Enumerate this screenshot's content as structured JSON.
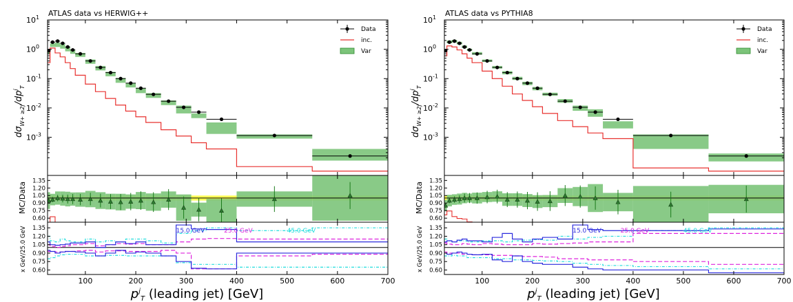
{
  "figure": {
    "x_axis_label": "p_T^j (leading jet) [GeV]",
    "x_ticks": [
      "100",
      "200",
      "300",
      "400",
      "500",
      "600",
      "700"
    ],
    "ratio_ylabel": "MC/Data",
    "var_ylabel": "x GeV/25.0 GeV",
    "ratio_ticks": [
      "1.35",
      "1.20",
      "1.05",
      "0.90",
      "0.75",
      "0.60"
    ],
    "var_ticks": [
      "1.35",
      "1.20",
      "1.05",
      "0.90",
      "0.75",
      "0.60"
    ],
    "main_ticks": [
      "10^1",
      "10^0",
      "10^-1",
      "10^-2",
      "10^-3"
    ],
    "colors": {
      "data": "#000000",
      "inc": "#e8312f",
      "var_band": "#7cc47a",
      "data_band": "#ffff55",
      "var_15": "#2b2bdd",
      "var_25": "#dd22dd",
      "var_45": "#22dddd"
    }
  },
  "chart_data": [
    {
      "type": "line",
      "title": "ATLAS data vs HERWIG++",
      "ylabel": "dσ_{W+≥2j}/dp_T^j",
      "xlabel": "p_T^j (leading jet) [GeV]",
      "xlim": [
        25,
        700
      ],
      "ylim": [
        5e-05,
        10
      ],
      "yscale": "log",
      "legend": [
        "Data",
        "inc.",
        "Var"
      ],
      "legend_position": "top-right",
      "bin_edges": [
        25,
        30,
        40,
        50,
        60,
        70,
        80,
        100,
        120,
        140,
        160,
        180,
        200,
        220,
        250,
        280,
        310,
        340,
        400,
        550,
        700
      ],
      "data": [
        0.9,
        1.75,
        1.9,
        1.6,
        1.2,
        0.95,
        0.7,
        0.4,
        0.24,
        0.16,
        0.1,
        0.07,
        0.047,
        0.029,
        0.017,
        0.0105,
        0.0072,
        0.0041,
        0.00115,
        0.00023
      ],
      "inc": [
        0.35,
        1.1,
        0.75,
        0.55,
        0.35,
        0.22,
        0.13,
        0.065,
        0.036,
        0.021,
        0.0125,
        0.0078,
        0.005,
        0.0032,
        0.0018,
        0.0011,
        0.00065,
        0.0004,
        0.0001,
        7e-05
      ],
      "var_low": [
        0.7,
        1.2,
        1.2,
        1.05,
        0.85,
        0.7,
        0.55,
        0.32,
        0.19,
        0.12,
        0.072,
        0.05,
        0.032,
        0.022,
        0.0125,
        0.0065,
        0.0045,
        0.0013,
        0.0009,
        0.00016
      ],
      "var_high": [
        1.0,
        1.6,
        1.7,
        1.5,
        1.2,
        0.95,
        0.75,
        0.45,
        0.27,
        0.17,
        0.105,
        0.07,
        0.048,
        0.032,
        0.018,
        0.012,
        0.0065,
        0.0032,
        0.00125,
        0.0004
      ],
      "ratio_mid": [
        0.95,
        0.97,
        1.0,
        0.99,
        0.98,
        0.98,
        0.97,
        0.98,
        0.95,
        0.93,
        0.92,
        0.93,
        0.95,
        0.92,
        0.97,
        0.81,
        0.77,
        0.75,
        0.98,
        1.05
      ],
      "var_lines": {
        "15": {
          "label": "15.0 GeV",
          "up": [
            1.1,
            1.05,
            1.04,
            1.05,
            1.06,
            1.08,
            1.08,
            1.1,
            1.0,
            1.05,
            1.1,
            1.07,
            1.1,
            1.05,
            1.05,
            1.4,
            1.33,
            1.32,
            1.1,
            1.1
          ],
          "down": [
            0.95,
            0.93,
            0.9,
            0.92,
            0.93,
            0.93,
            0.92,
            0.9,
            0.85,
            0.9,
            0.95,
            0.9,
            0.92,
            0.9,
            0.85,
            0.75,
            0.63,
            0.62,
            0.9,
            0.9
          ]
        },
        "25": {
          "label": "25.0 GeV",
          "up": [
            1.05,
            1.02,
            1.0,
            1.02,
            1.03,
            1.05,
            1.05,
            1.07,
            1.03,
            1.05,
            1.07,
            1.06,
            1.07,
            1.05,
            1.05,
            1.1,
            1.15,
            1.16,
            1.15,
            1.15
          ],
          "down": [
            0.93,
            0.93,
            0.92,
            0.92,
            0.93,
            0.93,
            0.94,
            0.95,
            0.92,
            0.94,
            0.94,
            0.93,
            0.93,
            0.93,
            0.95,
            0.9,
            0.62,
            0.62,
            0.85,
            0.88
          ]
        },
        "45": {
          "label": "45.0 GeV",
          "up": [
            1.2,
            1.12,
            1.1,
            1.15,
            1.12,
            1.1,
            1.1,
            1.15,
            1.1,
            1.12,
            1.1,
            1.15,
            1.15,
            1.12,
            1.08,
            1.25,
            1.3,
            1.35,
            1.3,
            1.35
          ],
          "down": [
            0.8,
            0.82,
            0.85,
            0.87,
            0.88,
            0.88,
            0.88,
            0.85,
            0.85,
            0.86,
            0.86,
            0.85,
            0.85,
            0.85,
            0.85,
            0.73,
            0.7,
            0.7,
            0.65,
            0.65
          ]
        }
      }
    },
    {
      "type": "line",
      "title": "ATLAS data vs PYTHIA8",
      "ylabel": "dσ_{W+≥2j}/dp_T^j",
      "xlabel": "p_T^j (leading jet) [GeV]",
      "xlim": [
        25,
        700
      ],
      "ylim": [
        5e-05,
        10
      ],
      "yscale": "log",
      "legend": [
        "Data",
        "inc.",
        "Var"
      ],
      "legend_position": "top-right",
      "bin_edges": [
        25,
        30,
        40,
        50,
        60,
        70,
        80,
        100,
        120,
        140,
        160,
        180,
        200,
        220,
        250,
        280,
        310,
        340,
        400,
        550,
        700
      ],
      "data": [
        0.9,
        1.75,
        1.9,
        1.6,
        1.2,
        0.95,
        0.7,
        0.4,
        0.24,
        0.16,
        0.1,
        0.07,
        0.047,
        0.029,
        0.017,
        0.0105,
        0.0072,
        0.0041,
        0.00115,
        0.00023
      ],
      "inc": [
        0.6,
        1.3,
        1.2,
        0.95,
        0.7,
        0.5,
        0.35,
        0.18,
        0.1,
        0.055,
        0.03,
        0.018,
        0.011,
        0.0065,
        0.0037,
        0.0023,
        0.0014,
        0.0009,
        9e-05,
        7e-05
      ],
      "var_low": [
        0.8,
        1.6,
        1.7,
        1.45,
        1.1,
        0.88,
        0.65,
        0.37,
        0.22,
        0.14,
        0.09,
        0.06,
        0.04,
        0.026,
        0.015,
        0.008,
        0.005,
        0.002,
        0.0004,
        0.00015
      ],
      "var_high": [
        1.0,
        2.0,
        2.1,
        1.8,
        1.35,
        1.05,
        0.8,
        0.45,
        0.27,
        0.18,
        0.115,
        0.078,
        0.052,
        0.033,
        0.02,
        0.012,
        0.009,
        0.0035,
        0.00125,
        0.00028
      ],
      "ratio_mid": [
        0.85,
        0.95,
        0.97,
        0.98,
        1.0,
        1.0,
        1.0,
        1.02,
        1.03,
        0.97,
        0.97,
        0.95,
        0.93,
        0.94,
        1.05,
        1.03,
        1.0,
        0.92,
        0.87,
        0.98
      ],
      "var_lines": {
        "15": {
          "label": "15.0 GeV",
          "up": [
            1.1,
            1.12,
            1.1,
            1.13,
            1.15,
            1.12,
            1.12,
            1.1,
            1.18,
            1.25,
            1.15,
            1.1,
            1.15,
            1.18,
            1.15,
            1.4,
            1.32,
            1.3,
            1.3,
            1.33
          ],
          "down": [
            0.9,
            0.88,
            0.9,
            0.92,
            0.9,
            0.88,
            0.87,
            0.88,
            0.78,
            0.75,
            0.85,
            0.75,
            0.72,
            0.7,
            0.7,
            0.65,
            0.62,
            0.6,
            0.6,
            0.55
          ]
        },
        "25": {
          "label": "25.0 GeV",
          "up": [
            1.08,
            1.06,
            1.05,
            1.05,
            1.07,
            1.06,
            1.05,
            1.07,
            1.06,
            1.05,
            1.05,
            1.05,
            1.07,
            1.06,
            1.07,
            1.08,
            1.1,
            1.1,
            1.25,
            1.25
          ],
          "down": [
            0.92,
            0.9,
            0.9,
            0.9,
            0.88,
            0.88,
            0.87,
            0.87,
            0.86,
            0.86,
            0.85,
            0.84,
            0.84,
            0.83,
            0.8,
            0.8,
            0.78,
            0.78,
            0.75,
            0.7
          ]
        },
        "45": {
          "label": "45.0 GeV",
          "up": [
            1.15,
            1.12,
            1.1,
            1.12,
            1.12,
            1.1,
            1.1,
            1.12,
            1.12,
            1.1,
            1.12,
            1.13,
            1.14,
            1.13,
            1.2,
            1.15,
            1.18,
            1.2,
            1.3,
            1.35
          ],
          "down": [
            0.85,
            0.85,
            0.86,
            0.85,
            0.85,
            0.82,
            0.82,
            0.82,
            0.8,
            0.8,
            0.78,
            0.78,
            0.77,
            0.76,
            0.75,
            0.72,
            0.7,
            0.68,
            0.66,
            0.62
          ]
        }
      }
    }
  ]
}
